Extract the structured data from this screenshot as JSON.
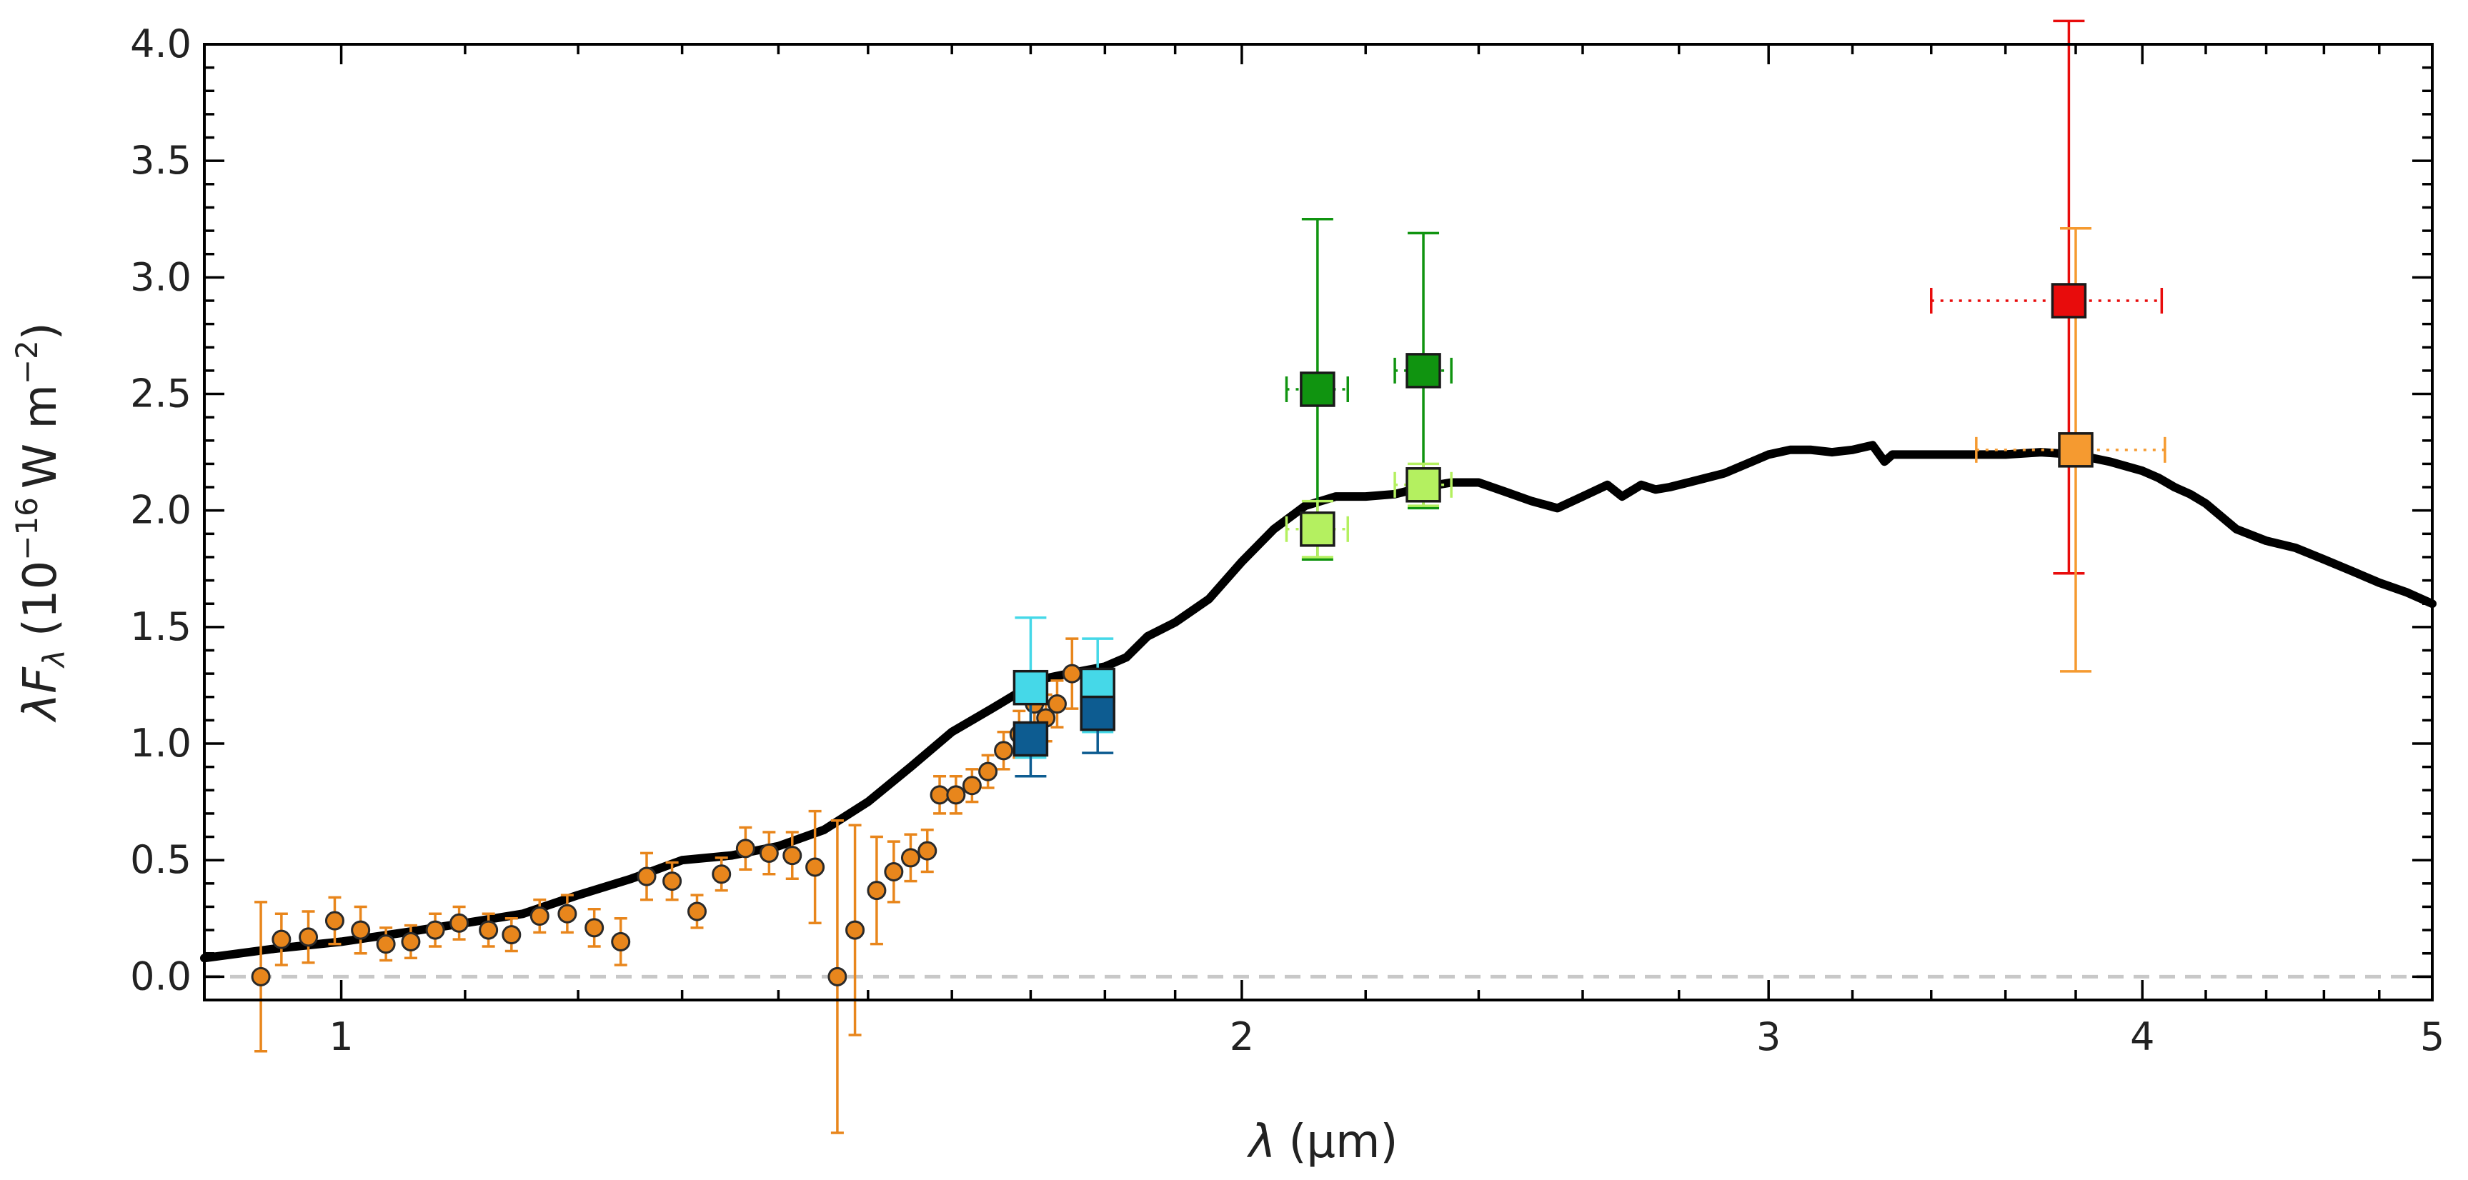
{
  "chart_data": {
    "type": "scatter",
    "xlabel_prefix": "λ",
    "xlabel_unit": "(μm)",
    "ylabel_prefix": "λ",
    "ylabel_F": "F",
    "ylabel_sub": "λ",
    "ylabel_open": "(10",
    "ylabel_exp": "−16",
    "ylabel_mid": "W m",
    "ylabel_exp2": "−2",
    "ylabel_close": ")",
    "xscale": "log",
    "xlim": [
      0.9,
      5.0
    ],
    "ylim": [
      -0.1,
      4.0
    ],
    "x_ticks": [
      1,
      2,
      3,
      4,
      5
    ],
    "x_tick_labels": [
      "1",
      "2",
      "3",
      "4",
      "5"
    ],
    "y_ticks": [
      0.0,
      0.5,
      1.0,
      1.5,
      2.0,
      2.5,
      3.0,
      3.5,
      4.0
    ],
    "y_tick_labels": [
      "0.0",
      "0.5",
      "1.0",
      "1.5",
      "2.0",
      "2.5",
      "3.0",
      "3.5",
      "4.0"
    ],
    "zero_line": {
      "y": 0,
      "color": "#c8c8c8"
    },
    "model": {
      "color": "#000000",
      "x": [
        0.9,
        0.95,
        1.0,
        1.05,
        1.1,
        1.15,
        1.2,
        1.25,
        1.3,
        1.35,
        1.4,
        1.45,
        1.5,
        1.55,
        1.6,
        1.65,
        1.7,
        1.72,
        1.75,
        1.8,
        1.83,
        1.86,
        1.9,
        1.95,
        2.0,
        2.05,
        2.1,
        2.15,
        2.2,
        2.25,
        2.3,
        2.35,
        2.4,
        2.45,
        2.5,
        2.55,
        2.6,
        2.65,
        2.68,
        2.72,
        2.75,
        2.78,
        2.82,
        2.86,
        2.9,
        2.95,
        3.0,
        3.05,
        3.1,
        3.15,
        3.2,
        3.25,
        3.28,
        3.3,
        3.35,
        3.4,
        3.5,
        3.6,
        3.7,
        3.8,
        3.9,
        4.0,
        4.05,
        4.1,
        4.15,
        4.2,
        4.3,
        4.4,
        4.5,
        4.6,
        4.7,
        4.8,
        4.9,
        5.0
      ],
      "y": [
        0.08,
        0.12,
        0.15,
        0.19,
        0.23,
        0.27,
        0.35,
        0.42,
        0.5,
        0.52,
        0.56,
        0.63,
        0.75,
        0.9,
        1.05,
        1.15,
        1.25,
        1.28,
        1.3,
        1.33,
        1.37,
        1.46,
        1.52,
        1.62,
        1.78,
        1.92,
        2.02,
        2.06,
        2.06,
        2.07,
        2.1,
        2.12,
        2.12,
        2.08,
        2.04,
        2.01,
        2.06,
        2.11,
        2.06,
        2.11,
        2.09,
        2.1,
        2.12,
        2.14,
        2.16,
        2.2,
        2.24,
        2.26,
        2.26,
        2.25,
        2.26,
        2.28,
        2.21,
        2.24,
        2.24,
        2.24,
        2.24,
        2.24,
        2.25,
        2.24,
        2.21,
        2.17,
        2.14,
        2.1,
        2.07,
        2.03,
        1.92,
        1.87,
        1.84,
        1.79,
        1.74,
        1.69,
        1.65,
        1.6
      ]
    },
    "spectrum": {
      "color": "#e8861c",
      "edge": "#2a2a2a",
      "points": [
        {
          "x": 0.94,
          "y": 0.0,
          "err": 0.32
        },
        {
          "x": 0.955,
          "y": 0.16,
          "err": 0.11
        },
        {
          "x": 0.975,
          "y": 0.17,
          "err": 0.11
        },
        {
          "x": 0.995,
          "y": 0.24,
          "err": 0.1
        },
        {
          "x": 1.015,
          "y": 0.2,
          "err": 0.1
        },
        {
          "x": 1.035,
          "y": 0.14,
          "err": 0.07
        },
        {
          "x": 1.055,
          "y": 0.15,
          "err": 0.07
        },
        {
          "x": 1.075,
          "y": 0.2,
          "err": 0.07
        },
        {
          "x": 1.095,
          "y": 0.23,
          "err": 0.07
        },
        {
          "x": 1.12,
          "y": 0.2,
          "err": 0.07
        },
        {
          "x": 1.14,
          "y": 0.18,
          "err": 0.07
        },
        {
          "x": 1.165,
          "y": 0.26,
          "err": 0.07
        },
        {
          "x": 1.19,
          "y": 0.27,
          "err": 0.08
        },
        {
          "x": 1.215,
          "y": 0.21,
          "err": 0.08
        },
        {
          "x": 1.24,
          "y": 0.15,
          "err": 0.1
        },
        {
          "x": 1.265,
          "y": 0.43,
          "err": 0.1
        },
        {
          "x": 1.29,
          "y": 0.41,
          "err": 0.08
        },
        {
          "x": 1.315,
          "y": 0.28,
          "err": 0.07
        },
        {
          "x": 1.34,
          "y": 0.44,
          "err": 0.07
        },
        {
          "x": 1.365,
          "y": 0.55,
          "err": 0.09
        },
        {
          "x": 1.39,
          "y": 0.53,
          "err": 0.09
        },
        {
          "x": 1.415,
          "y": 0.52,
          "err": 0.1
        },
        {
          "x": 1.44,
          "y": 0.47,
          "err": 0.24
        },
        {
          "x": 1.465,
          "y": 0.0,
          "err": 0.67
        },
        {
          "x": 1.485,
          "y": 0.2,
          "err": 0.45
        },
        {
          "x": 1.51,
          "y": 0.37,
          "err": 0.23
        },
        {
          "x": 1.53,
          "y": 0.45,
          "err": 0.13
        },
        {
          "x": 1.55,
          "y": 0.51,
          "err": 0.1
        },
        {
          "x": 1.57,
          "y": 0.54,
          "err": 0.09
        },
        {
          "x": 1.585,
          "y": 0.78,
          "err": 0.08
        },
        {
          "x": 1.605,
          "y": 0.78,
          "err": 0.08
        },
        {
          "x": 1.625,
          "y": 0.82,
          "err": 0.07
        },
        {
          "x": 1.645,
          "y": 0.88,
          "err": 0.07
        },
        {
          "x": 1.665,
          "y": 0.97,
          "err": 0.08
        },
        {
          "x": 1.685,
          "y": 1.04,
          "err": 0.1
        },
        {
          "x": 1.705,
          "y": 1.17,
          "err": 0.1
        },
        {
          "x": 1.72,
          "y": 1.11,
          "err": 0.1
        },
        {
          "x": 1.735,
          "y": 1.17,
          "err": 0.1
        },
        {
          "x": 1.755,
          "y": 1.3,
          "err": 0.15
        }
      ]
    },
    "photometry": [
      {
        "x": 1.7,
        "y": 1.24,
        "yerr": 0.3,
        "xerr": 0.02,
        "color": "#45d8e8"
      },
      {
        "x": 1.7,
        "y": 1.02,
        "yerr": 0.16,
        "xerr": 0.02,
        "color": "#0d5c91"
      },
      {
        "x": 1.79,
        "y": 1.25,
        "yerr": 0.2,
        "xerr": 0.02,
        "color": "#45d8e8"
      },
      {
        "x": 1.79,
        "y": 1.13,
        "yerr": 0.17,
        "xerr": 0.02,
        "color": "#0d5c91"
      },
      {
        "x": 2.12,
        "y": 2.52,
        "yerr": 0.73,
        "xerr": 0.05,
        "color": "#109410"
      },
      {
        "x": 2.12,
        "y": 1.92,
        "yerr": 0.12,
        "xerr": 0.05,
        "color": "#b4f060"
      },
      {
        "x": 2.3,
        "y": 2.6,
        "yerr": 0.59,
        "xerr": 0.05,
        "color": "#109410"
      },
      {
        "x": 2.3,
        "y": 2.11,
        "yerr": 0.09,
        "xerr": 0.05,
        "color": "#b4f060"
      },
      {
        "x": 3.78,
        "y": 2.9,
        "yerr_low": 1.17,
        "yerr_high": 1.2,
        "xerr_low": 0.38,
        "xerr_high": 0.28,
        "color": "#e80c0c"
      },
      {
        "x": 3.8,
        "y": 2.26,
        "yerr": 0.95,
        "xerr_low": 0.28,
        "xerr_high": 0.27,
        "color": "#f59a30"
      }
    ]
  }
}
